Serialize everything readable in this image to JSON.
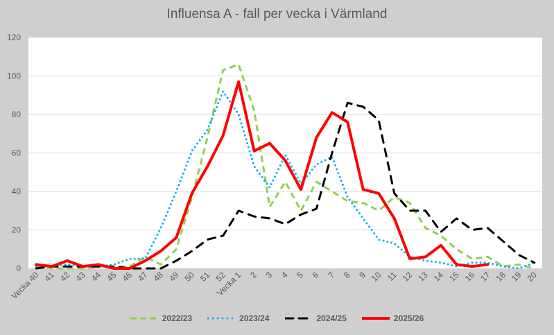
{
  "chart_data": {
    "type": "line",
    "title": "Influensa A - fall per vecka i Värmland",
    "xlabel": "",
    "ylabel": "",
    "ylim": [
      0,
      120
    ],
    "yticks": [
      0,
      20,
      40,
      60,
      80,
      100,
      120
    ],
    "grid": true,
    "legend_position": "bottom",
    "categories": [
      "Vecka 40",
      "41",
      "42",
      "43",
      "44",
      "45",
      "46",
      "47",
      "48",
      "49",
      "50",
      "51",
      "52",
      "Vecka 1",
      "2",
      "3",
      "4",
      "5",
      "6",
      "7",
      "8",
      "9",
      "10",
      "11",
      "12",
      "13",
      "14",
      "15",
      "16",
      "17",
      "18",
      "19",
      "20"
    ],
    "series": [
      {
        "name": "2022/23",
        "color": "#92d050",
        "style": "dashed",
        "values": [
          1,
          0,
          0,
          0,
          1,
          1,
          1,
          6,
          2,
          10,
          37,
          68,
          103,
          106,
          82,
          32,
          45,
          30,
          45,
          40,
          35,
          34,
          30,
          37,
          34,
          21,
          17,
          10,
          5,
          6,
          1,
          2,
          0
        ]
      },
      {
        "name": "2023/24",
        "color": "#00b0f0",
        "style": "dotted",
        "values": [
          1,
          1,
          2,
          1,
          1,
          2,
          5,
          5,
          21,
          40,
          61,
          72,
          92,
          80,
          53,
          42,
          59,
          44,
          54,
          58,
          37,
          26,
          15,
          13,
          6,
          4,
          3,
          1,
          3,
          3,
          1,
          0,
          3
        ]
      },
      {
        "name": "2024/25",
        "color": "#000000",
        "style": "dashed-long",
        "values": [
          0,
          1,
          1,
          1,
          1,
          1,
          0,
          0,
          0,
          4,
          9,
          15,
          17,
          30,
          27,
          26,
          23,
          28,
          31,
          60,
          86,
          84,
          77,
          39,
          30,
          30,
          19,
          26,
          20,
          21,
          14,
          7,
          3
        ]
      },
      {
        "name": "2025/26",
        "color": "#ff0000",
        "style": "solid",
        "values": [
          2,
          1,
          4,
          1,
          2,
          0,
          0,
          4,
          9,
          16,
          39,
          53,
          69,
          97,
          61,
          65,
          56,
          41,
          68,
          81,
          76,
          41,
          39,
          26,
          5,
          6,
          12,
          2,
          1,
          2,
          null,
          null,
          null
        ]
      }
    ]
  },
  "legend": {
    "items": [
      {
        "label": "2022/23"
      },
      {
        "label": "2023/24"
      },
      {
        "label": "2024/25"
      },
      {
        "label": "2025/26"
      }
    ]
  }
}
